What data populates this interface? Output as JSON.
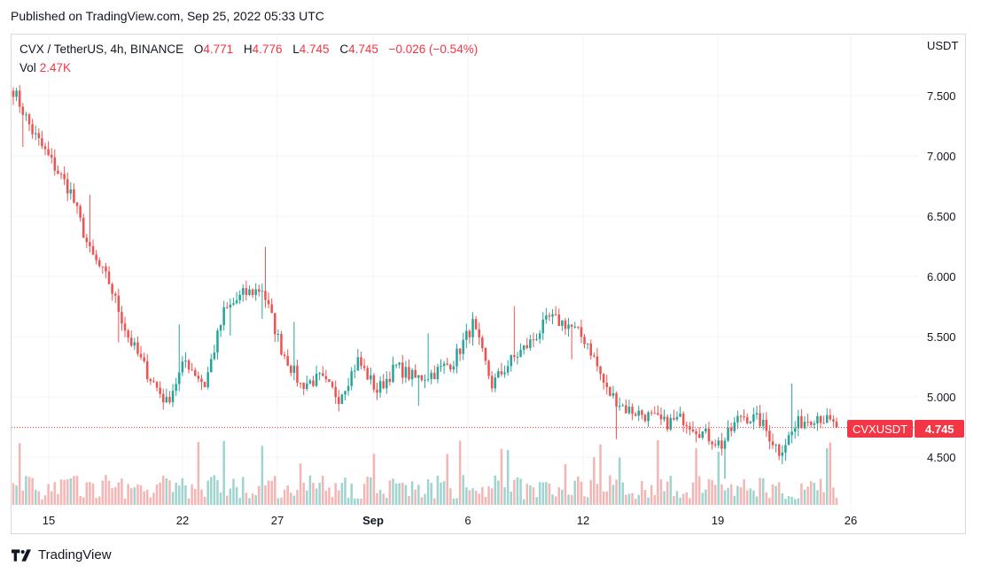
{
  "header": {
    "published": "Published on TradingView.com, Sep 25, 2022 05:33 UTC"
  },
  "legend": {
    "symbol": "CVX / TetherUS, 4h, BINANCE",
    "o_label": "O",
    "o_value": "4.771",
    "h_label": "H",
    "h_value": "4.776",
    "l_label": "L",
    "l_value": "4.745",
    "c_label": "C",
    "c_value": "4.745",
    "change": "−0.026 (−0.54%)",
    "vol_label": "Vol",
    "vol_value": "2.47K"
  },
  "price_axis": {
    "currency": "USDT",
    "ticks": [
      "7.500",
      "7.000",
      "6.500",
      "6.000",
      "5.500",
      "5.000",
      "4.500"
    ]
  },
  "price_tag": {
    "symbol": "CVXUSDT",
    "value": "4.745"
  },
  "time_axis": {
    "labels": [
      "15",
      "22",
      "27",
      "Sep",
      "6",
      "12",
      "19",
      "26"
    ]
  },
  "footer": {
    "brand": "TradingView"
  },
  "colors": {
    "up": "#26a69a",
    "down": "#ef5350",
    "vol_up": "#9fd4cf",
    "vol_down": "#f4b5b5",
    "grid": "#f0f3fa",
    "price_line": "#f23645"
  },
  "chart_data": {
    "type": "candlestick",
    "symbol": "CVX / TetherUS",
    "interval": "4h",
    "exchange": "BINANCE",
    "ylim": [
      4.1,
      7.9
    ],
    "grid": true,
    "last_close": 4.745,
    "anchors": [
      {
        "t": "Aug 13",
        "close": 7.55
      },
      {
        "t": "Aug 14",
        "close": 7.2
      },
      {
        "t": "Aug 15",
        "close": 6.95
      },
      {
        "t": "Aug 16",
        "close": 6.7
      },
      {
        "t": "Aug 17",
        "close": 6.2
      },
      {
        "t": "Aug 18",
        "close": 5.95
      },
      {
        "t": "Aug 19",
        "close": 5.5
      },
      {
        "t": "Aug 20",
        "close": 5.2
      },
      {
        "t": "Aug 21",
        "close": 4.95
      },
      {
        "t": "Aug 22",
        "close": 5.3
      },
      {
        "t": "Aug 23",
        "close": 5.1
      },
      {
        "t": "Aug 24",
        "close": 5.7
      },
      {
        "t": "Aug 25",
        "close": 5.85
      },
      {
        "t": "Aug 26",
        "close": 5.9
      },
      {
        "t": "Aug 27",
        "close": 5.4
      },
      {
        "t": "Aug 28",
        "close": 5.1
      },
      {
        "t": "Aug 29",
        "close": 5.15
      },
      {
        "t": "Aug 30",
        "close": 5.0
      },
      {
        "t": "Aug 31",
        "close": 5.3
      },
      {
        "t": "Sep 1",
        "close": 5.05
      },
      {
        "t": "Sep 2",
        "close": 5.25
      },
      {
        "t": "Sep 3",
        "close": 5.15
      },
      {
        "t": "Sep 4",
        "close": 5.2
      },
      {
        "t": "Sep 5",
        "close": 5.3
      },
      {
        "t": "Sep 6",
        "close": 5.6
      },
      {
        "t": "Sep 7",
        "close": 5.1
      },
      {
        "t": "Sep 8",
        "close": 5.3
      },
      {
        "t": "Sep 9",
        "close": 5.45
      },
      {
        "t": "Sep 10",
        "close": 5.65
      },
      {
        "t": "Sep 11",
        "close": 5.6
      },
      {
        "t": "Sep 12",
        "close": 5.45
      },
      {
        "t": "Sep 13",
        "close": 5.05
      },
      {
        "t": "Sep 14",
        "close": 4.9
      },
      {
        "t": "Sep 15",
        "close": 4.85
      },
      {
        "t": "Sep 16",
        "close": 4.78
      },
      {
        "t": "Sep 17",
        "close": 4.82
      },
      {
        "t": "Sep 18",
        "close": 4.7
      },
      {
        "t": "Sep 19",
        "close": 4.6
      },
      {
        "t": "Sep 20",
        "close": 4.85
      },
      {
        "t": "Sep 21",
        "close": 4.8
      },
      {
        "t": "Sep 22",
        "close": 4.55
      },
      {
        "t": "Sep 23",
        "close": 4.78
      },
      {
        "t": "Sep 24",
        "close": 4.85
      },
      {
        "t": "Sep 25",
        "close": 4.745
      }
    ]
  }
}
